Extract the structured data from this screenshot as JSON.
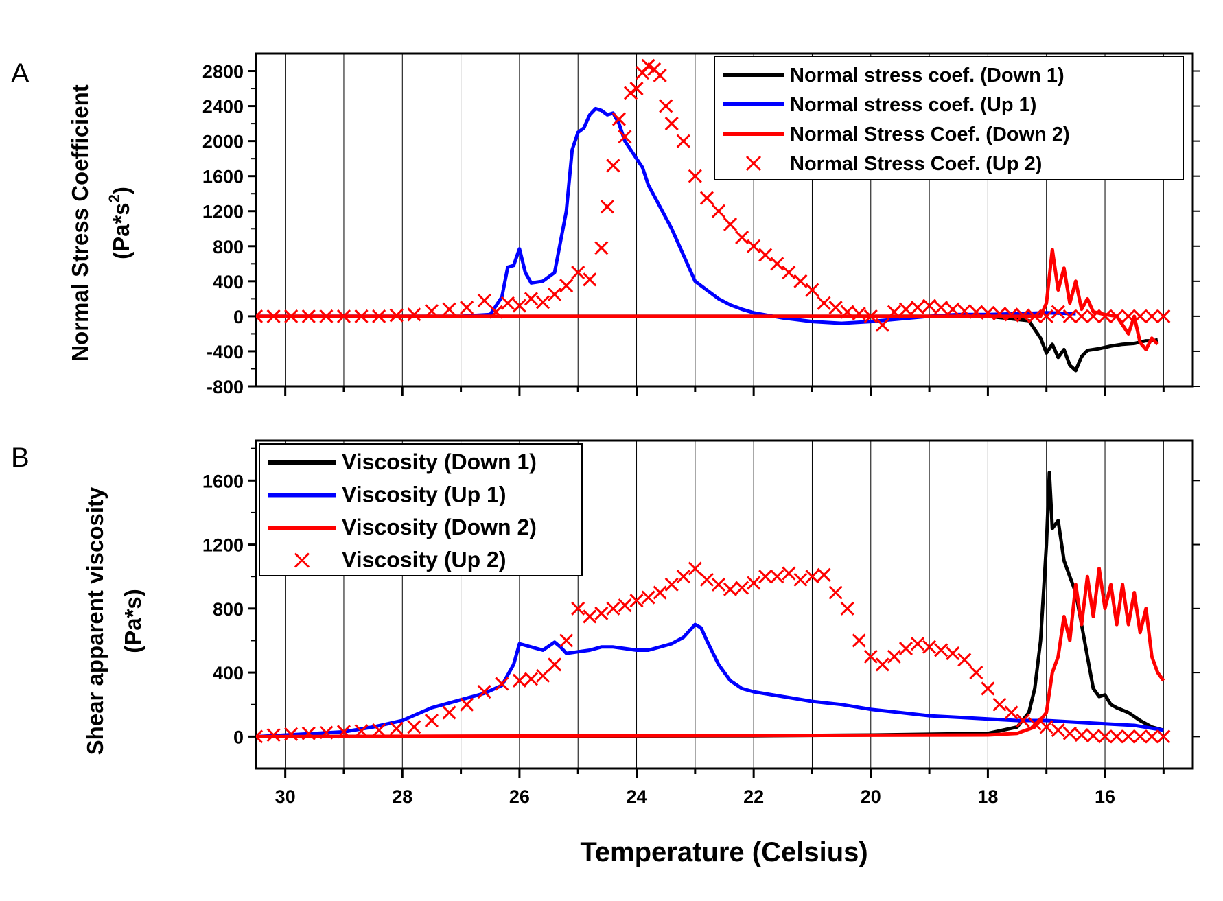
{
  "panels": [
    {
      "letter": "A",
      "chart_data": {
        "type": "line",
        "ylabel_line1": "Normal Stress Coefficient",
        "ylabel_line2": "(Pa*s",
        "ylabel_sup": "2",
        "ylabel_close": ")",
        "xlim": [
          30.5,
          14.5
        ],
        "ylim": [
          -800,
          3000
        ],
        "yticks": [
          -800,
          -400,
          0,
          400,
          800,
          1200,
          1600,
          2000,
          2400,
          2800
        ],
        "xticks": [
          30,
          28,
          26,
          24,
          22,
          20,
          18,
          16
        ],
        "grid_x": true,
        "legend_position": "top-right",
        "series": [
          {
            "name": "Normal stress coef. (Down 1)",
            "color": "#000000",
            "style": "line",
            "x": [
              30.5,
              20,
              18,
              17.3,
              17.1,
              17.0,
              16.9,
              16.8,
              16.7,
              16.6,
              16.5,
              16.4,
              16.3,
              16.1,
              15.9,
              15.7,
              15.5,
              15.3,
              15.2,
              15.1
            ],
            "y": [
              0,
              0,
              0,
              -50,
              -250,
              -420,
              -320,
              -470,
              -380,
              -560,
              -620,
              -460,
              -390,
              -370,
              -340,
              -320,
              -310,
              -280,
              -280,
              -270
            ]
          },
          {
            "name": "Normal stress coef. (Up 1)",
            "color": "#0000ff",
            "style": "line",
            "x": [
              30.5,
              27,
              26.5,
              26.3,
              26.2,
              26.1,
              26.0,
              25.9,
              25.8,
              25.6,
              25.4,
              25.2,
              25.1,
              25.0,
              24.9,
              24.8,
              24.7,
              24.6,
              24.5,
              24.4,
              24.3,
              24.2,
              24.1,
              24.0,
              23.9,
              23.8,
              23.6,
              23.4,
              23.2,
              23.0,
              22.8,
              22.6,
              22.4,
              22.2,
              22.0,
              21.5,
              21.0,
              20.5,
              20.0,
              19.5,
              19.0,
              18.5,
              18.0,
              17.5,
              17.0,
              16.5
            ],
            "y": [
              0,
              0,
              20,
              220,
              560,
              580,
              770,
              500,
              380,
              400,
              500,
              1200,
              1900,
              2100,
              2150,
              2300,
              2370,
              2350,
              2300,
              2320,
              2200,
              2000,
              1900,
              1800,
              1700,
              1500,
              1250,
              1000,
              700,
              400,
              300,
              200,
              130,
              80,
              40,
              -20,
              -60,
              -80,
              -60,
              -30,
              0,
              20,
              20,
              30,
              40,
              30
            ]
          },
          {
            "name": "Normal Stress Coef. (Down 2)",
            "color": "#ff0000",
            "style": "line",
            "x": [
              30.5,
              17.1,
              17.0,
              16.9,
              16.8,
              16.7,
              16.6,
              16.5,
              16.4,
              16.3,
              16.2,
              16.0,
              15.8,
              15.6,
              15.5,
              15.4,
              15.3,
              15.2,
              15.1
            ],
            "y": [
              0,
              0,
              150,
              760,
              300,
              550,
              150,
              400,
              80,
              200,
              50,
              20,
              0,
              -200,
              0,
              -300,
              -380,
              -250,
              -320
            ]
          },
          {
            "name": "Normal Stress Coef. (Up 2)",
            "color": "#ff0000",
            "style": "marker-x",
            "x": [
              30.5,
              30.2,
              29.9,
              29.6,
              29.3,
              29.0,
              28.7,
              28.4,
              28.1,
              27.8,
              27.5,
              27.2,
              26.9,
              26.6,
              26.4,
              26.2,
              26.0,
              25.8,
              25.6,
              25.4,
              25.2,
              25.0,
              24.8,
              24.6,
              24.5,
              24.4,
              24.3,
              24.2,
              24.1,
              24.0,
              23.9,
              23.8,
              23.7,
              23.6,
              23.5,
              23.4,
              23.2,
              23.0,
              22.8,
              22.6,
              22.4,
              22.2,
              22.0,
              21.8,
              21.6,
              21.4,
              21.2,
              21.0,
              20.8,
              20.6,
              20.4,
              20.2,
              20.0,
              19.8,
              19.6,
              19.4,
              19.2,
              19.0,
              18.8,
              18.6,
              18.4,
              18.2,
              18.0,
              17.8,
              17.6,
              17.4,
              17.2,
              17.0,
              16.8,
              16.6,
              16.4,
              16.2,
              16.0,
              15.8,
              15.6,
              15.4,
              15.2,
              15.0
            ],
            "y": [
              0,
              0,
              0,
              0,
              0,
              0,
              0,
              0,
              10,
              20,
              60,
              80,
              100,
              180,
              50,
              150,
              120,
              200,
              160,
              250,
              350,
              500,
              420,
              780,
              1250,
              1720,
              2250,
              2050,
              2550,
              2600,
              2780,
              2860,
              2820,
              2750,
              2400,
              2200,
              2000,
              1600,
              1350,
              1200,
              1050,
              900,
              800,
              700,
              600,
              500,
              400,
              300,
              150,
              100,
              50,
              30,
              0,
              -100,
              50,
              80,
              100,
              120,
              100,
              80,
              60,
              50,
              40,
              30,
              20,
              10,
              0,
              0,
              50,
              0,
              0,
              0,
              0,
              0,
              0,
              0,
              0,
              0
            ]
          }
        ]
      }
    },
    {
      "letter": "B",
      "chart_data": {
        "type": "line",
        "ylabel_line1": "Shear apparent viscosity",
        "ylabel_line2": "(Pa*s)",
        "xlim": [
          30.5,
          14.5
        ],
        "ylim": [
          -200,
          1850
        ],
        "yticks": [
          0,
          400,
          800,
          1200,
          1600
        ],
        "xticks": [
          30,
          28,
          26,
          24,
          22,
          20,
          18,
          16
        ],
        "grid_x": true,
        "legend_position": "top-left",
        "series": [
          {
            "name": "Viscosity (Down 1)",
            "color": "#000000",
            "style": "line",
            "x": [
              30.5,
              22,
              20,
              18,
              17.5,
              17.3,
              17.2,
              17.1,
              17.0,
              16.95,
              16.9,
              16.8,
              16.7,
              16.6,
              16.5,
              16.4,
              16.3,
              16.2,
              16.1,
              16.0,
              15.9,
              15.8,
              15.6,
              15.4,
              15.2,
              15.0
            ],
            "y": [
              0,
              5,
              10,
              20,
              60,
              150,
              300,
              600,
              1200,
              1650,
              1300,
              1350,
              1100,
              1000,
              900,
              700,
              500,
              300,
              250,
              260,
              200,
              180,
              150,
              100,
              60,
              40
            ]
          },
          {
            "name": "Viscosity (Up 1)",
            "color": "#0000ff",
            "style": "line",
            "x": [
              30.5,
              29,
              28.5,
              28,
              27.5,
              27,
              26.6,
              26.3,
              26.1,
              26.0,
              25.8,
              25.6,
              25.4,
              25.3,
              25.2,
              25.0,
              24.8,
              24.6,
              24.4,
              24.2,
              24.0,
              23.8,
              23.6,
              23.4,
              23.2,
              23.0,
              22.9,
              22.8,
              22.6,
              22.4,
              22.2,
              22.0,
              21.5,
              21.0,
              20.5,
              20.0,
              19.5,
              19.0,
              18.5,
              18.0,
              17.5,
              17.0,
              16.5,
              16.0,
              15.5,
              15.0
            ],
            "y": [
              0,
              30,
              60,
              100,
              180,
              230,
              270,
              320,
              450,
              580,
              560,
              540,
              590,
              560,
              520,
              530,
              540,
              560,
              560,
              550,
              540,
              540,
              560,
              580,
              620,
              700,
              680,
              600,
              450,
              350,
              300,
              280,
              250,
              220,
              200,
              170,
              150,
              130,
              120,
              110,
              100,
              100,
              90,
              80,
              70,
              40
            ]
          },
          {
            "name": "Viscosity (Down 2)",
            "color": "#ff0000",
            "style": "line",
            "x": [
              30.5,
              18,
              17.5,
              17.2,
              17.0,
              16.9,
              16.8,
              16.7,
              16.6,
              16.5,
              16.4,
              16.3,
              16.2,
              16.1,
              16.0,
              15.9,
              15.8,
              15.7,
              15.6,
              15.5,
              15.4,
              15.3,
              15.2,
              15.1,
              15.0
            ],
            "y": [
              0,
              10,
              20,
              60,
              150,
              400,
              500,
              750,
              600,
              950,
              700,
              1000,
              750,
              1050,
              800,
              950,
              700,
              950,
              700,
              900,
              650,
              800,
              500,
              400,
              350
            ]
          },
          {
            "name": "Viscosity (Up 2)",
            "color": "#ff0000",
            "style": "marker-x",
            "x": [
              30.5,
              30.2,
              29.9,
              29.6,
              29.3,
              29.0,
              28.7,
              28.4,
              28.1,
              27.8,
              27.5,
              27.2,
              26.9,
              26.6,
              26.3,
              26.0,
              25.8,
              25.6,
              25.4,
              25.2,
              25.0,
              24.8,
              24.6,
              24.4,
              24.2,
              24.0,
              23.8,
              23.6,
              23.4,
              23.2,
              23.0,
              22.8,
              22.6,
              22.4,
              22.2,
              22.0,
              21.8,
              21.6,
              21.4,
              21.2,
              21.0,
              20.8,
              20.6,
              20.4,
              20.2,
              20.0,
              19.8,
              19.6,
              19.4,
              19.2,
              19.0,
              18.8,
              18.6,
              18.4,
              18.2,
              18.0,
              17.8,
              17.6,
              17.4,
              17.2,
              17.0,
              16.8,
              16.6,
              16.4,
              16.2,
              16.0,
              15.8,
              15.6,
              15.4,
              15.2,
              15.0
            ],
            "y": [
              0,
              10,
              15,
              20,
              25,
              30,
              35,
              40,
              50,
              60,
              100,
              150,
              200,
              280,
              330,
              350,
              360,
              380,
              450,
              600,
              800,
              750,
              770,
              800,
              820,
              850,
              870,
              900,
              950,
              1000,
              1050,
              980,
              950,
              920,
              930,
              960,
              1000,
              1000,
              1020,
              980,
              1000,
              1010,
              900,
              800,
              600,
              500,
              450,
              500,
              550,
              580,
              560,
              540,
              520,
              480,
              400,
              300,
              200,
              150,
              100,
              80,
              60,
              40,
              20,
              10,
              5,
              0,
              0,
              0,
              0,
              0,
              0
            ]
          }
        ]
      }
    }
  ],
  "x_axis_title": "Temperature (Celsius)"
}
